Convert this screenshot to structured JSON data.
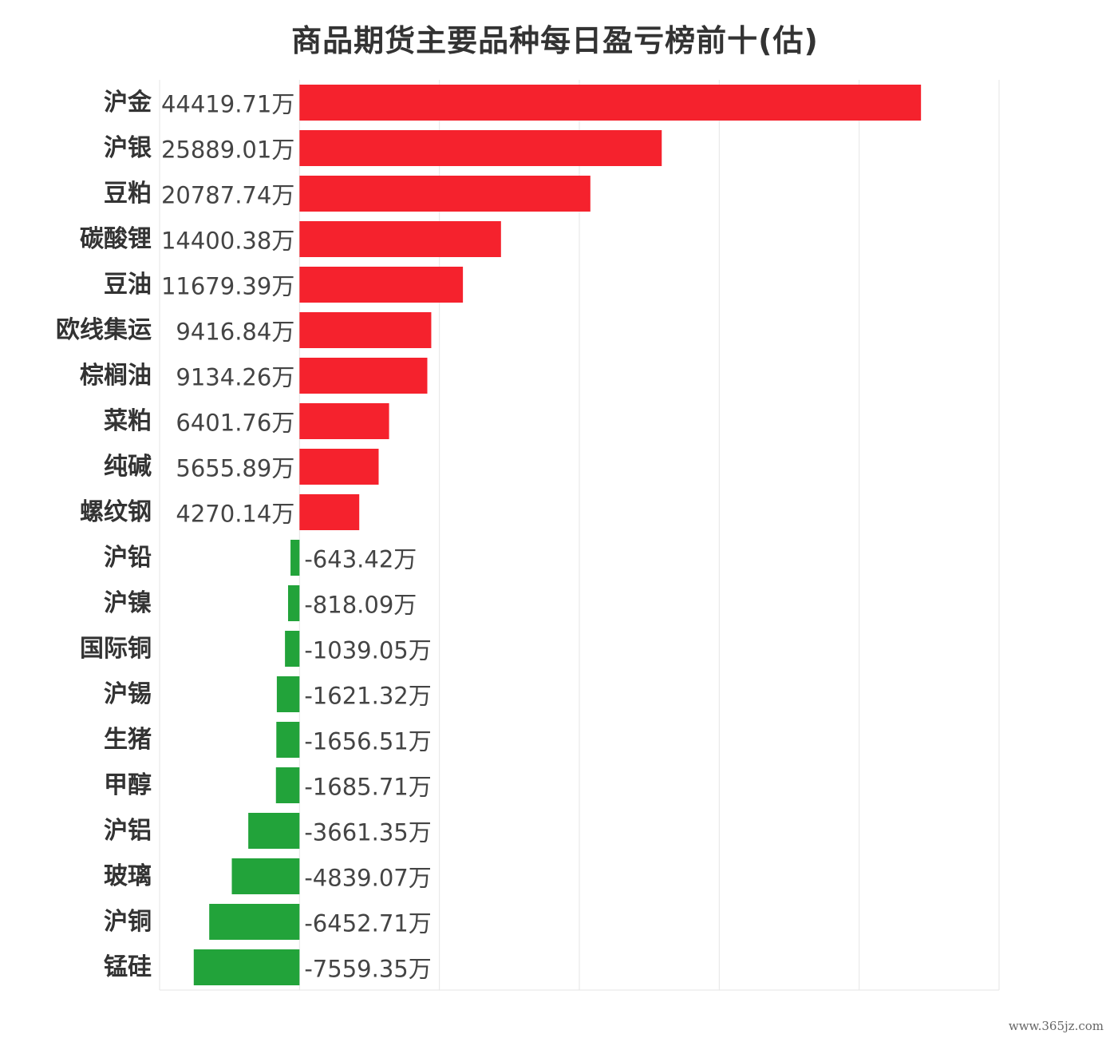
{
  "title": "商品期货主要品种每日盈亏榜前十(估)",
  "watermark": "www.365jz.com",
  "colors": {
    "positive": "#f5222d",
    "negative": "#22a33a",
    "grid": "#e6e6e6",
    "text": "#333333"
  },
  "chart_data": {
    "type": "bar",
    "orientation": "horizontal",
    "title": "商品期货主要品种每日盈亏榜前十(估)",
    "unit": "万",
    "xlim": [
      -10000,
      50000
    ],
    "grid": true,
    "categories": [
      "沪金",
      "沪银",
      "豆粕",
      "碳酸锂",
      "豆油",
      "欧线集运",
      "棕榈油",
      "菜粕",
      "纯碱",
      "螺纹钢",
      "沪铅",
      "沪镍",
      "国际铜",
      "沪锡",
      "生猪",
      "甲醇",
      "沪铝",
      "玻璃",
      "沪铜",
      "锰硅"
    ],
    "values": [
      44419.71,
      25889.01,
      20787.74,
      14400.38,
      11679.39,
      9416.84,
      9134.26,
      6401.76,
      5655.89,
      4270.14,
      -643.42,
      -818.09,
      -1039.05,
      -1621.32,
      -1656.51,
      -1685.71,
      -3661.35,
      -4839.07,
      -6452.71,
      -7559.35
    ],
    "value_labels": [
      "44419.71万",
      "25889.01万",
      "20787.74万",
      "14400.38万",
      "11679.39万",
      "9416.84万",
      "9134.26万",
      "6401.76万",
      "5655.89万",
      "4270.14万",
      "-643.42万",
      "-818.09万",
      "-1039.05万",
      "-1621.32万",
      "-1656.51万",
      "-1685.71万",
      "-3661.35万",
      "-4839.07万",
      "-6452.71万",
      "-7559.35万"
    ]
  }
}
